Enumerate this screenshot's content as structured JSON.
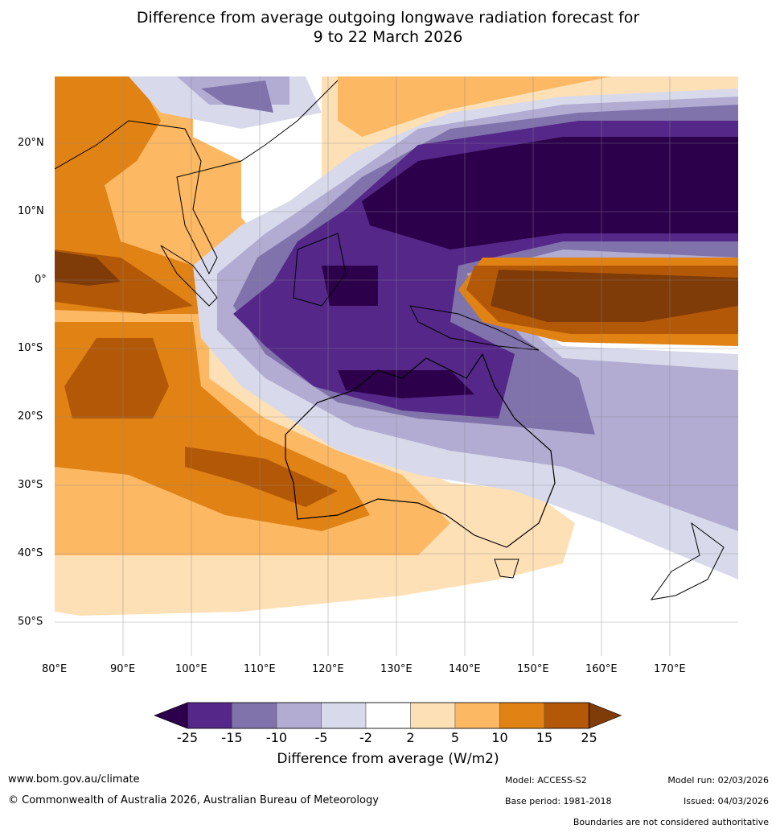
{
  "title_line1": "Difference from average outgoing longwave radiation forecast for",
  "title_line2": "9 to 22 March 2026",
  "map": {
    "lon_ticks": [
      "80°E",
      "90°E",
      "100°E",
      "110°E",
      "120°E",
      "130°E",
      "140°E",
      "150°E",
      "160°E",
      "170°E"
    ],
    "lat_ticks": [
      "20°N",
      "10°N",
      "0°",
      "10°S",
      "20°S",
      "30°S",
      "40°S",
      "50°S"
    ]
  },
  "colorbar": {
    "levels": [
      "-25",
      "-15",
      "-10",
      "-5",
      "-2",
      "2",
      "5",
      "10",
      "15",
      "25"
    ],
    "colors": [
      "#2d004b",
      "#542788",
      "#8073ac",
      "#b2abd2",
      "#d8daeb",
      "#ffffff",
      "#fee0b6",
      "#fdb863",
      "#e08214",
      "#b35806",
      "#7f3b08"
    ],
    "label": "Difference from average (W/m2)"
  },
  "footer": {
    "url": "www.bom.gov.au/climate",
    "copyright": "© Commonwealth of Australia 2026, Australian Bureau of Meteorology",
    "model": "Model: ACCESS-S2",
    "model_run": "Model run: 02/03/2026",
    "base_period": "Base period: 1981-2018",
    "issued": "Issued: 04/03/2026",
    "disclaimer": "Boundaries are not considered authoritative"
  }
}
